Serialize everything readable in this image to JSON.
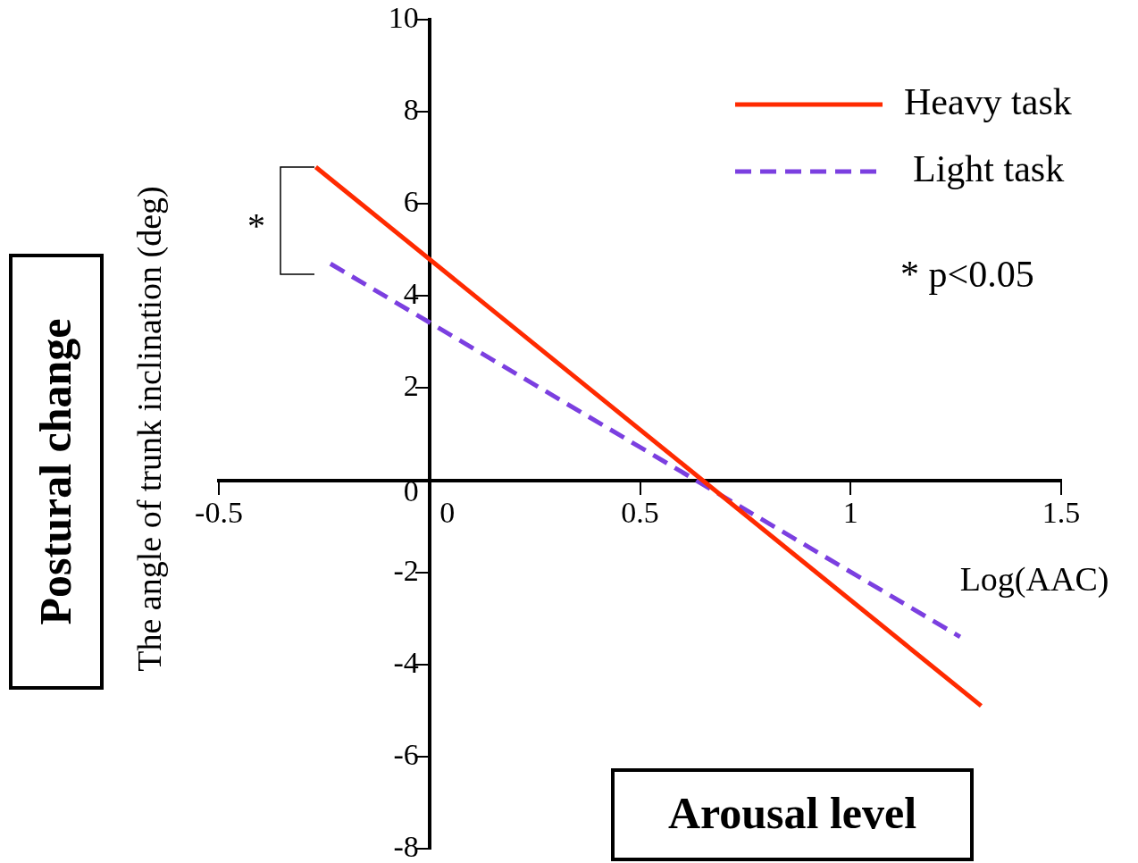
{
  "chart_data": {
    "type": "line",
    "xlabel": "Log(AAC)",
    "ylabel": "The angle of trunk inclination (deg)",
    "series": [
      {
        "name": "Heavy task",
        "color": "#ff2a00",
        "line_style": "solid",
        "x": [
          -0.27,
          1.31
        ],
        "values": [
          6.8,
          -4.9
        ]
      },
      {
        "name": "Light task",
        "color": "#7b3fe0",
        "line_style": "dashed",
        "x": [
          -0.235,
          1.26
        ],
        "values": [
          4.7,
          -3.4
        ]
      }
    ],
    "xlim": [
      -0.5,
      1.5
    ],
    "xticks": [
      -0.5,
      0,
      0.5,
      1,
      1.5
    ],
    "ylim": [
      -8,
      10
    ],
    "yticks": [
      -8,
      -6,
      -4,
      -2,
      0,
      2,
      4,
      6,
      8,
      10
    ],
    "grid": false,
    "legend": "top right",
    "marker": "none",
    "annotations": [
      "*",
      "* p<0.05",
      "Postural change",
      "Arousal level"
    ]
  }
}
